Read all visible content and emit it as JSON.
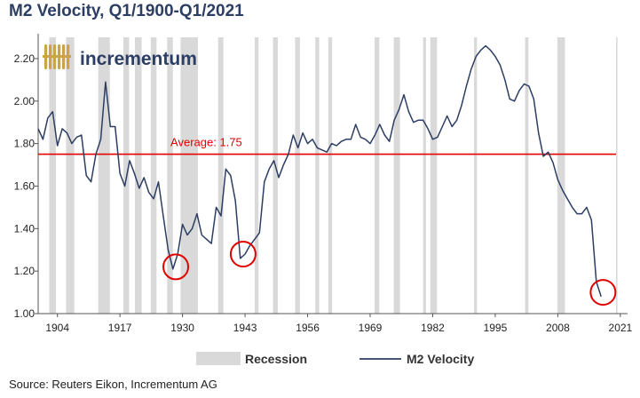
{
  "header": {
    "title": "M2 Velocity, Q1/1900-Q1/2021"
  },
  "logo": {
    "text": "incrementum",
    "icon": "wheat-sheaf-icon",
    "text_color": "#2c3e63",
    "icon_color": "#c9a44a"
  },
  "footer": {
    "source": "Source: Reuters Eikon, Incrementum AG"
  },
  "chart_data": {
    "type": "line",
    "title": "M2 Velocity, Q1/1900-Q1/2021",
    "xlim": [
      1900,
      2022.5
    ],
    "ylim": [
      1.0,
      2.3
    ],
    "x_ticks": [
      1904,
      1917,
      1930,
      1943,
      1956,
      1969,
      1982,
      1995,
      2008,
      2021
    ],
    "y_ticks": [
      1.0,
      1.2,
      1.4,
      1.6,
      1.8,
      2.0,
      2.2
    ],
    "y_tick_labels": [
      "1.00",
      "1.20",
      "1.40",
      "1.60",
      "1.80",
      "2.00",
      "2.20"
    ],
    "grid": false,
    "legend_position": "bottom",
    "legend": [
      {
        "name": "Recession",
        "kind": "area",
        "color": "#d9d9d9"
      },
      {
        "name": "M2 Velocity",
        "kind": "line",
        "color": "#2c3e63"
      }
    ],
    "series": [
      {
        "name": "M2 Velocity",
        "color": "#2c3e63",
        "points": [
          [
            1900,
            1.87
          ],
          [
            1901,
            1.82
          ],
          [
            1902,
            1.92
          ],
          [
            1903,
            1.95
          ],
          [
            1904,
            1.79
          ],
          [
            1905,
            1.87
          ],
          [
            1906,
            1.85
          ],
          [
            1907,
            1.8
          ],
          [
            1908,
            1.83
          ],
          [
            1909,
            1.84
          ],
          [
            1910,
            1.65
          ],
          [
            1911,
            1.62
          ],
          [
            1912,
            1.75
          ],
          [
            1913,
            1.82
          ],
          [
            1914,
            2.09
          ],
          [
            1915,
            1.88
          ],
          [
            1916,
            1.88
          ],
          [
            1917,
            1.66
          ],
          [
            1918,
            1.6
          ],
          [
            1919,
            1.72
          ],
          [
            1920,
            1.66
          ],
          [
            1921,
            1.59
          ],
          [
            1922,
            1.64
          ],
          [
            1923,
            1.57
          ],
          [
            1924,
            1.54
          ],
          [
            1925,
            1.62
          ],
          [
            1926,
            1.46
          ],
          [
            1927,
            1.3
          ],
          [
            1928,
            1.21
          ],
          [
            1929,
            1.28
          ],
          [
            1930,
            1.42
          ],
          [
            1931,
            1.37
          ],
          [
            1932,
            1.4
          ],
          [
            1933,
            1.47
          ],
          [
            1934,
            1.37
          ],
          [
            1935,
            1.35
          ],
          [
            1936,
            1.33
          ],
          [
            1937,
            1.5
          ],
          [
            1938,
            1.46
          ],
          [
            1939,
            1.68
          ],
          [
            1940,
            1.65
          ],
          [
            1941,
            1.53
          ],
          [
            1942,
            1.26
          ],
          [
            1943,
            1.28
          ],
          [
            1944,
            1.32
          ],
          [
            1945,
            1.35
          ],
          [
            1946,
            1.38
          ],
          [
            1947,
            1.62
          ],
          [
            1948,
            1.68
          ],
          [
            1949,
            1.72
          ],
          [
            1950,
            1.64
          ],
          [
            1951,
            1.7
          ],
          [
            1952,
            1.75
          ],
          [
            1953,
            1.84
          ],
          [
            1954,
            1.78
          ],
          [
            1955,
            1.85
          ],
          [
            1956,
            1.8
          ],
          [
            1957,
            1.82
          ],
          [
            1958,
            1.78
          ],
          [
            1959,
            1.77
          ],
          [
            1960,
            1.76
          ],
          [
            1961,
            1.8
          ],
          [
            1962,
            1.79
          ],
          [
            1963,
            1.81
          ],
          [
            1964,
            1.82
          ],
          [
            1965,
            1.82
          ],
          [
            1966,
            1.89
          ],
          [
            1967,
            1.83
          ],
          [
            1968,
            1.82
          ],
          [
            1969,
            1.8
          ],
          [
            1970,
            1.84
          ],
          [
            1971,
            1.89
          ],
          [
            1972,
            1.84
          ],
          [
            1973,
            1.81
          ],
          [
            1974,
            1.91
          ],
          [
            1975,
            1.96
          ],
          [
            1976,
            2.03
          ],
          [
            1977,
            1.95
          ],
          [
            1978,
            1.9
          ],
          [
            1979,
            1.91
          ],
          [
            1980,
            1.91
          ],
          [
            1981,
            1.87
          ],
          [
            1982,
            1.82
          ],
          [
            1983,
            1.83
          ],
          [
            1984,
            1.88
          ],
          [
            1985,
            1.93
          ],
          [
            1986,
            1.88
          ],
          [
            1987,
            1.91
          ],
          [
            1988,
            1.98
          ],
          [
            1989,
            2.07
          ],
          [
            1990,
            2.15
          ],
          [
            1991,
            2.21
          ],
          [
            1992,
            2.24
          ],
          [
            1993,
            2.26
          ],
          [
            1994,
            2.24
          ],
          [
            1995,
            2.21
          ],
          [
            1996,
            2.17
          ],
          [
            1997,
            2.1
          ],
          [
            1998,
            2.01
          ],
          [
            1999,
            2.0
          ],
          [
            2000,
            2.05
          ],
          [
            2001,
            2.08
          ],
          [
            2002,
            2.07
          ],
          [
            2003,
            2.01
          ],
          [
            2004,
            1.85
          ],
          [
            2005,
            1.74
          ],
          [
            2006,
            1.76
          ],
          [
            2007,
            1.71
          ],
          [
            2008,
            1.63
          ],
          [
            2009,
            1.58
          ],
          [
            2010,
            1.54
          ],
          [
            2011,
            1.5
          ],
          [
            2012,
            1.47
          ],
          [
            2013,
            1.47
          ],
          [
            2014,
            1.5
          ],
          [
            2015,
            1.44
          ],
          [
            2016,
            1.15
          ],
          [
            2017,
            1.08
          ]
        ]
      }
    ],
    "recessions": [
      [
        1902.3,
        1903.7
      ],
      [
        1905.8,
        1907.5
      ],
      [
        1912.5,
        1914.9
      ],
      [
        1917.7,
        1918.9
      ],
      [
        1920.1,
        1921.5
      ],
      [
        1923.4,
        1924.6
      ],
      [
        1926.8,
        1928.0
      ],
      [
        1929.6,
        1933.2
      ],
      [
        1937.4,
        1938.5
      ],
      [
        1945.0,
        1945.8
      ],
      [
        1948.8,
        1949.8
      ],
      [
        1953.4,
        1954.4
      ],
      [
        1957.6,
        1958.4
      ],
      [
        1960.3,
        1961.1
      ],
      [
        1969.9,
        1970.9
      ],
      [
        1973.9,
        1975.2
      ],
      [
        1980.0,
        1980.6
      ],
      [
        1981.5,
        1982.9
      ],
      [
        1990.6,
        1991.2
      ],
      [
        2001.2,
        2001.9
      ],
      [
        2007.9,
        2009.5
      ],
      [
        2020.1,
        2020.4
      ]
    ],
    "average": {
      "value": 1.75,
      "label": "Average: 1.75",
      "color": "#e00000"
    },
    "highlight_circles": [
      {
        "x": 1928.6,
        "y": 1.22,
        "color": "#e00000"
      },
      {
        "x": 1942.6,
        "y": 1.28,
        "color": "#e00000"
      },
      {
        "x": 2017.4,
        "y": 1.1,
        "color": "#e00000"
      }
    ]
  }
}
